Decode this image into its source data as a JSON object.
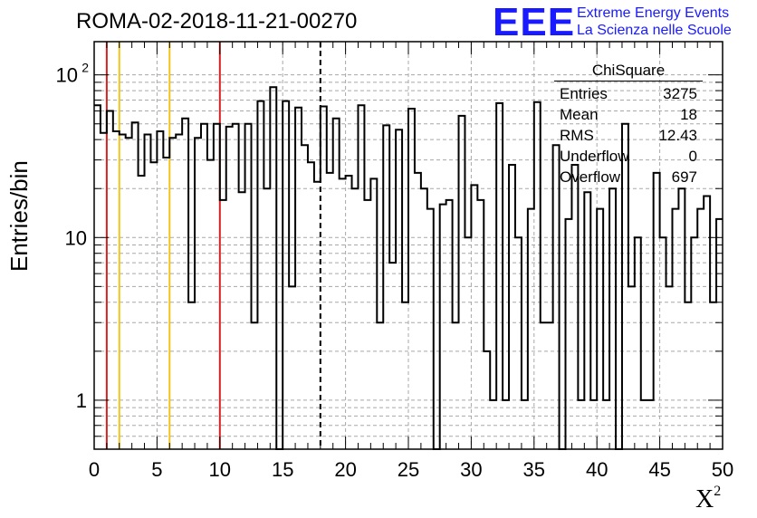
{
  "chart_data": {
    "type": "histogram",
    "title": "ROMA-02-2018-11-21-00270",
    "xlabel": "X",
    "xlabel_superscript": "2",
    "ylabel": "Entries/bin",
    "xlim": [
      0,
      50
    ],
    "ylim": [
      0.5,
      160
    ],
    "yscale": "log",
    "grid": true,
    "bin_width": 0.5,
    "x_ticks": [
      "0",
      "5",
      "10",
      "15",
      "20",
      "25",
      "30",
      "35",
      "40",
      "45",
      "50"
    ],
    "x_tick_values": [
      0,
      5,
      10,
      15,
      20,
      25,
      30,
      35,
      40,
      45,
      50
    ],
    "y_ticks": [
      {
        "value": 1,
        "label": "1"
      },
      {
        "value": 10,
        "label": "10"
      },
      {
        "value": 100,
        "label": "10",
        "exponent": "2"
      }
    ],
    "values": [
      65,
      44,
      60,
      45,
      43,
      41,
      51,
      24,
      43,
      29,
      45,
      31,
      41,
      43,
      54,
      4,
      41,
      50,
      30,
      50,
      17,
      48,
      50,
      19,
      50,
      3,
      69,
      20,
      84,
      0,
      69,
      5,
      63,
      37,
      29,
      22,
      64,
      25,
      54,
      23,
      24,
      20,
      65,
      17,
      23,
      3,
      49,
      7,
      46,
      4,
      62,
      25,
      20,
      15,
      0,
      16,
      17,
      3,
      56,
      10,
      21,
      17,
      2,
      1,
      67,
      1,
      28,
      10,
      1,
      15,
      68,
      3,
      3,
      37,
      0,
      13,
      28,
      1,
      19,
      1,
      15,
      1,
      20,
      0,
      50,
      5,
      10,
      1,
      1,
      25,
      10,
      5,
      15,
      20,
      4,
      10,
      15,
      18,
      4,
      13
    ],
    "vertical_lines": [
      {
        "x": 1,
        "color": "#d62020",
        "style": "solid"
      },
      {
        "x": 2,
        "color": "#f2c318",
        "style": "solid"
      },
      {
        "x": 6,
        "color": "#f2c318",
        "style": "solid"
      },
      {
        "x": 10,
        "color": "#d62020",
        "style": "solid"
      },
      {
        "x": 18,
        "color": "#000000",
        "style": "dashed"
      }
    ],
    "stats_box": {
      "title": "ChiSquare",
      "rows": [
        {
          "label": "Entries",
          "value": "3275"
        },
        {
          "label": "Mean",
          "value": "18"
        },
        {
          "label": "RMS",
          "value": "12.43"
        },
        {
          "label": "Underflow",
          "value": "0"
        },
        {
          "label": "Overflow",
          "value": "697"
        }
      ]
    }
  },
  "logo": {
    "text": "EEE",
    "line1": "Extreme Energy Events",
    "line2": "La Scienza nelle Scuole",
    "color": "#1a1aff"
  }
}
